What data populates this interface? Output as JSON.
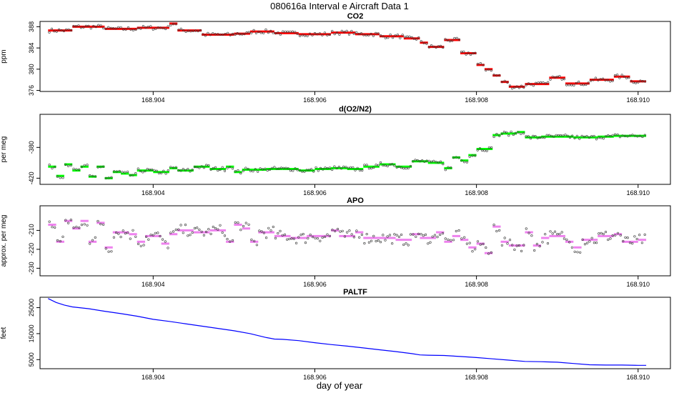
{
  "page_title": "080616a   Interval e Aircraft Data 1",
  "x_axis_label": "day of year",
  "chart_data": [
    {
      "type": "scatter",
      "title": "CO2",
      "ylabel": "ppm",
      "xlim": [
        168.9026,
        168.9104
      ],
      "ylim": [
        375.8,
        389
      ],
      "xticks": [
        "168.904",
        "168.906",
        "168.908",
        "168.910"
      ],
      "yticks": [
        "388",
        "384",
        "380",
        "376"
      ],
      "colors": {
        "avg": "#ff0000",
        "pts": "#333333"
      },
      "avg_segments": [
        [
          168.9027,
          168.903,
          387.3
        ],
        [
          168.903,
          168.9034,
          388.0
        ],
        [
          168.9034,
          168.9038,
          387.6
        ],
        [
          168.9038,
          168.9042,
          387.8
        ],
        [
          168.9042,
          168.9043,
          388.6
        ],
        [
          168.9043,
          168.9046,
          387.3
        ],
        [
          168.9046,
          168.905,
          386.5
        ],
        [
          168.905,
          168.9052,
          386.7
        ],
        [
          168.9052,
          168.9055,
          387.1
        ],
        [
          168.9055,
          168.9058,
          386.8
        ],
        [
          168.9058,
          168.9062,
          386.6
        ],
        [
          168.9062,
          168.9065,
          386.9
        ],
        [
          168.9065,
          168.9068,
          386.6
        ],
        [
          168.9068,
          168.9071,
          386.2
        ],
        [
          168.9071,
          168.9073,
          385.8
        ],
        [
          168.9073,
          168.9074,
          385.0
        ],
        [
          168.9074,
          168.9076,
          384.2
        ],
        [
          168.9076,
          168.9078,
          385.5
        ],
        [
          168.9078,
          168.908,
          383.0
        ],
        [
          168.908,
          168.9081,
          380.8
        ],
        [
          168.9081,
          168.9082,
          380.0
        ],
        [
          168.9082,
          168.9083,
          378.8
        ],
        [
          168.9083,
          168.9084,
          377.6
        ],
        [
          168.9084,
          168.9086,
          376.7
        ],
        [
          168.9086,
          168.9089,
          377.2
        ],
        [
          168.9089,
          168.9091,
          378.4
        ],
        [
          168.9091,
          168.9094,
          377.3
        ],
        [
          168.9094,
          168.9097,
          378.0
        ],
        [
          168.9097,
          168.9099,
          378.6
        ],
        [
          168.9099,
          168.9101,
          377.7
        ]
      ],
      "noise": 0.35
    },
    {
      "type": "scatter",
      "title": "d(O2/N2)",
      "ylabel": "per meg",
      "xlim": [
        168.9026,
        168.9104
      ],
      "ylim": [
        -428,
        -337
      ],
      "xticks": [
        "168.904",
        "168.906",
        "168.908",
        "168.910"
      ],
      "yticks": [
        "-380",
        "-420"
      ],
      "colors": {
        "avg": "#00ff00",
        "pts": "#333333"
      },
      "avg_segments": [
        [
          168.9027,
          168.9028,
          -405.0
        ],
        [
          168.9028,
          168.9029,
          -417.0
        ],
        [
          168.9029,
          168.903,
          -402.0
        ],
        [
          168.903,
          168.9031,
          -410.0
        ],
        [
          168.9031,
          168.9032,
          -405.0
        ],
        [
          168.9032,
          168.9033,
          -418.0
        ],
        [
          168.9033,
          168.9034,
          -405.0
        ],
        [
          168.9034,
          168.9035,
          -420.0
        ],
        [
          168.9035,
          168.9036,
          -412.0
        ],
        [
          168.9036,
          168.9037,
          -414.0
        ],
        [
          168.9037,
          168.9038,
          -416.0
        ],
        [
          168.9038,
          168.904,
          -410.0
        ],
        [
          168.904,
          168.9042,
          -412.0
        ],
        [
          168.9042,
          168.9043,
          -407.0
        ],
        [
          168.9043,
          168.9045,
          -410.0
        ],
        [
          168.9045,
          168.9047,
          -405.0
        ],
        [
          168.9047,
          168.9049,
          -408.0
        ],
        [
          168.9049,
          168.905,
          -405.0
        ],
        [
          168.905,
          168.9051,
          -412.0
        ],
        [
          168.9051,
          168.9054,
          -409.0
        ],
        [
          168.9054,
          168.9056,
          -408.0
        ],
        [
          168.9056,
          168.9058,
          -408.0
        ],
        [
          168.9058,
          168.906,
          -410.0
        ],
        [
          168.906,
          168.9062,
          -408.0
        ],
        [
          168.9062,
          168.9064,
          -407.0
        ],
        [
          168.9064,
          168.9066,
          -408.0
        ],
        [
          168.9066,
          168.9068,
          -405.0
        ],
        [
          168.9068,
          168.907,
          -402.0
        ],
        [
          168.907,
          168.9072,
          -405.0
        ],
        [
          168.9072,
          168.9074,
          -398.0
        ],
        [
          168.9074,
          168.9076,
          -400.0
        ],
        [
          168.9076,
          168.9077,
          -407.0
        ],
        [
          168.9077,
          168.9078,
          -393.0
        ],
        [
          168.9078,
          168.9079,
          -397.0
        ],
        [
          168.9079,
          168.908,
          -390.0
        ],
        [
          168.908,
          168.9082,
          -382.0
        ],
        [
          168.9082,
          168.9083,
          -364.0
        ],
        [
          168.9083,
          168.9085,
          -362.0
        ],
        [
          168.9085,
          168.9086,
          -360.0
        ],
        [
          168.9086,
          168.9088,
          -367.0
        ],
        [
          168.9088,
          168.909,
          -366.0
        ],
        [
          168.909,
          168.9092,
          -366.0
        ],
        [
          168.9092,
          168.9095,
          -367.0
        ],
        [
          168.9095,
          168.9097,
          -366.0
        ],
        [
          168.9097,
          168.9101,
          -365.0
        ]
      ],
      "noise": 2.5
    },
    {
      "type": "scatter",
      "title": "APO",
      "ylabel": "approx. per meg",
      "xlim": [
        168.9026,
        168.9104
      ],
      "ylim": [
        -234,
        -197
      ],
      "xticks": [
        "168.904",
        "168.906",
        "168.908",
        "168.910"
      ],
      "yticks": [
        "-210",
        "-220",
        "-230"
      ],
      "colors": {
        "avg": "#ee82ee",
        "pts": "#333333"
      },
      "avg_segments": [
        [
          168.9027,
          168.9028,
          -207.0
        ],
        [
          168.9028,
          168.9029,
          -216.0
        ],
        [
          168.9029,
          168.903,
          -205.0
        ],
        [
          168.903,
          168.9031,
          -209.0
        ],
        [
          168.9031,
          168.9032,
          -205.0
        ],
        [
          168.9032,
          168.9033,
          -216.0
        ],
        [
          168.9033,
          168.9034,
          -206.0
        ],
        [
          168.9034,
          168.9035,
          -219.0
        ],
        [
          168.9035,
          168.9037,
          -211.0
        ],
        [
          168.9037,
          168.9038,
          -212.0
        ],
        [
          168.9038,
          168.9039,
          -216.0
        ],
        [
          168.9039,
          168.9041,
          -213.0
        ],
        [
          168.9041,
          168.9042,
          -217.0
        ],
        [
          168.9042,
          168.9043,
          -212.0
        ],
        [
          168.9043,
          168.9045,
          -210.0
        ],
        [
          168.9045,
          168.9047,
          -211.0
        ],
        [
          168.9047,
          168.9049,
          -210.0
        ],
        [
          168.9049,
          168.905,
          -216.0
        ],
        [
          168.905,
          168.9051,
          -207.0
        ],
        [
          168.9051,
          168.9052,
          -209.0
        ],
        [
          168.9052,
          168.9053,
          -216.0
        ],
        [
          168.9053,
          168.9055,
          -211.0
        ],
        [
          168.9055,
          168.9057,
          -213.0
        ],
        [
          168.9057,
          168.9059,
          -214.0
        ],
        [
          168.9059,
          168.9062,
          -213.0
        ],
        [
          168.9062,
          168.9063,
          -210.0
        ],
        [
          168.9063,
          168.9065,
          -213.0
        ],
        [
          168.9065,
          168.9066,
          -211.0
        ],
        [
          168.9066,
          168.9068,
          -214.0
        ],
        [
          168.9068,
          168.907,
          -214.0
        ],
        [
          168.907,
          168.9072,
          -215.0
        ],
        [
          168.9072,
          168.9073,
          -212.0
        ],
        [
          168.9073,
          168.9075,
          -214.0
        ],
        [
          168.9075,
          168.9076,
          -211.0
        ],
        [
          168.9076,
          168.9077,
          -216.0
        ],
        [
          168.9077,
          168.9078,
          -213.0
        ],
        [
          168.9078,
          168.9079,
          -215.0
        ],
        [
          168.9079,
          168.908,
          -219.0
        ],
        [
          168.908,
          168.9081,
          -217.0
        ],
        [
          168.9081,
          168.9082,
          -222.0
        ],
        [
          168.9082,
          168.9083,
          -208.0
        ],
        [
          168.9083,
          168.9084,
          -216.0
        ],
        [
          168.9084,
          168.9086,
          -218.0
        ],
        [
          168.9086,
          168.9087,
          -211.0
        ],
        [
          168.9087,
          168.9088,
          -218.0
        ],
        [
          168.9088,
          168.9089,
          -214.0
        ],
        [
          168.9089,
          168.9091,
          -213.0
        ],
        [
          168.9091,
          168.9092,
          -216.0
        ],
        [
          168.9092,
          168.9093,
          -219.0
        ],
        [
          168.9093,
          168.9095,
          -215.0
        ],
        [
          168.9095,
          168.9097,
          -213.0
        ],
        [
          168.9097,
          168.9098,
          -212.0
        ],
        [
          168.9098,
          168.91,
          -216.0
        ],
        [
          168.91,
          168.9101,
          -215.0
        ]
      ],
      "noise": 3.0
    },
    {
      "type": "line",
      "title": "PALTF",
      "ylabel": "feet",
      "xlim": [
        168.9026,
        168.9104
      ],
      "ylim": [
        1500,
        29000
      ],
      "xticks": [
        "168.904",
        "168.906",
        "168.908",
        "168.910"
      ],
      "yticks": [
        "25000",
        "15000",
        "5000"
      ],
      "colors": {
        "line": "#0000ff"
      },
      "x": [
        168.9027,
        168.9028,
        168.9029,
        168.903,
        168.9032,
        168.9034,
        168.9036,
        168.9038,
        168.904,
        168.9042,
        168.9044,
        168.9046,
        168.9048,
        168.905,
        168.9052,
        168.9054,
        168.9055,
        168.9056,
        168.9058,
        168.906,
        168.9062,
        168.9064,
        168.9066,
        168.9068,
        168.907,
        168.9072,
        168.9073,
        168.9074,
        168.9076,
        168.9078,
        168.908,
        168.9082,
        168.9084,
        168.9086,
        168.9088,
        168.909,
        168.9092,
        168.9094,
        168.9096,
        168.9098,
        168.91,
        168.9101
      ],
      "y": [
        28500,
        27000,
        26000,
        25300,
        24600,
        23600,
        22700,
        21700,
        20500,
        19700,
        18800,
        17900,
        17000,
        16100,
        15000,
        13500,
        12900,
        12800,
        12300,
        11500,
        10800,
        10200,
        9500,
        8800,
        8100,
        7300,
        6800,
        6700,
        6600,
        6200,
        5800,
        5300,
        4800,
        4300,
        4200,
        4000,
        3500,
        3000,
        2900,
        2900,
        2800,
        2800
      ]
    }
  ]
}
